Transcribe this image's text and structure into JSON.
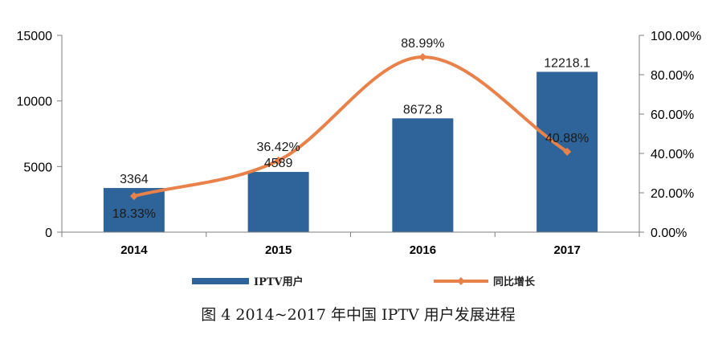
{
  "chart_data": {
    "type": "bar",
    "categories": [
      "2014",
      "2015",
      "2016",
      "2017"
    ],
    "series": [
      {
        "name": "IPTV用户",
        "type": "bar",
        "axis": "left",
        "values": [
          3364,
          4589,
          8672.8,
          12218.1
        ],
        "labels": [
          "3364",
          "4589",
          "8672.8",
          "12218.1"
        ],
        "color": "#2E6499"
      },
      {
        "name": "同比增长",
        "type": "line",
        "axis": "right",
        "smooth": true,
        "values": [
          18.33,
          36.42,
          88.99,
          40.88
        ],
        "labels": [
          "18.33%",
          "36.42%",
          "88.99%",
          "40.88%"
        ],
        "color": "#E8814A",
        "marker": "diamond"
      }
    ],
    "y_left": {
      "ylim": [
        0,
        15000
      ],
      "ticks": [
        0,
        5000,
        10000,
        15000
      ],
      "tick_labels": [
        "0",
        "5000",
        "10000",
        "15000"
      ]
    },
    "y_right": {
      "ylim": [
        0,
        100
      ],
      "ticks": [
        0,
        20,
        40,
        60,
        80,
        100
      ],
      "tick_labels": [
        "0.00%",
        "20.00%",
        "40.00%",
        "60.00%",
        "80.00%",
        "100.00%"
      ]
    },
    "title": "",
    "xlabel": "",
    "ylabel": "",
    "grid": false,
    "legend_position": "bottom"
  },
  "caption": "图 4  2014~2017 年中国 IPTV 用户发展进程"
}
